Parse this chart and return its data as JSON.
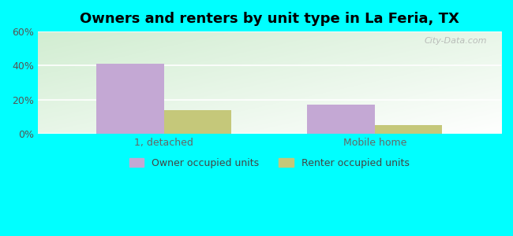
{
  "title": "Owners and renters by unit type in La Feria, TX",
  "categories": [
    "1, detached",
    "Mobile home"
  ],
  "owner_values": [
    41,
    17
  ],
  "renter_values": [
    14,
    5
  ],
  "owner_color": "#C4A8D4",
  "renter_color": "#C5C87A",
  "ylim": [
    0,
    60
  ],
  "yticks": [
    0,
    20,
    40,
    60
  ],
  "ytick_labels": [
    "0%",
    "20%",
    "40%",
    "60%"
  ],
  "bar_width": 0.32,
  "outer_background": "#00FFFF",
  "legend_owner": "Owner occupied units",
  "legend_renter": "Renter occupied units",
  "watermark": "City-Data.com"
}
